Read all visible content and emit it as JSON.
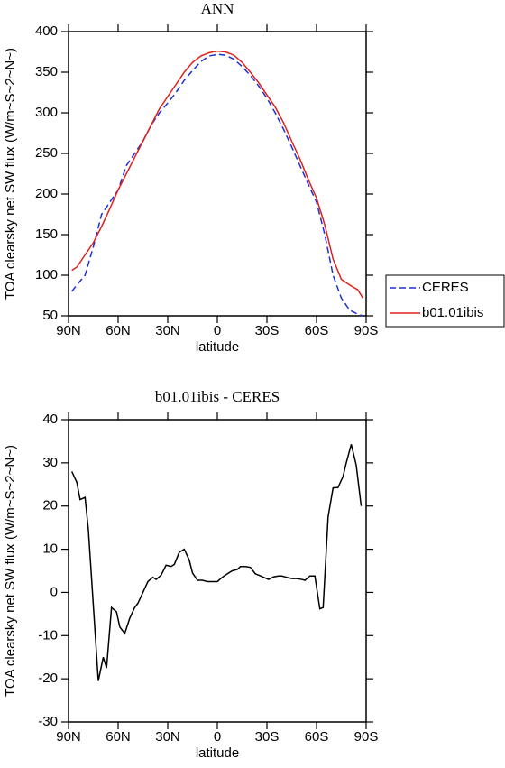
{
  "chart_data": [
    {
      "type": "line",
      "title": "ANN",
      "xlabel": "latitude",
      "ylabel": "TOA clearsky net SW flux (W/m~S~2~N~)",
      "x": [
        88,
        85,
        80,
        75,
        70,
        65,
        60,
        55,
        50,
        45,
        40,
        35,
        30,
        25,
        20,
        15,
        10,
        5,
        0,
        -5,
        -10,
        -15,
        -20,
        -25,
        -30,
        -35,
        -40,
        -45,
        -50,
        -55,
        -60,
        -65,
        -70,
        -75,
        -80,
        -85,
        -88
      ],
      "series": [
        {
          "name": "CERES",
          "color": "#1f2fd6",
          "style": "dashed",
          "values": [
            80,
            88,
            100,
            135,
            175,
            190,
            205,
            235,
            250,
            265,
            285,
            300,
            312,
            325,
            340,
            352,
            363,
            370,
            372,
            371,
            366,
            357,
            346,
            333,
            318,
            300,
            280,
            258,
            235,
            212,
            190,
            150,
            100,
            72,
            57,
            52,
            50
          ]
        },
        {
          "name": "b01.01ibis",
          "color": "#e0201b",
          "style": "solid",
          "values": [
            106,
            110,
            125,
            140,
            160,
            182,
            205,
            225,
            245,
            265,
            285,
            305,
            320,
            335,
            350,
            362,
            370,
            374,
            376,
            375,
            371,
            362,
            350,
            337,
            322,
            307,
            288,
            265,
            243,
            218,
            195,
            162,
            120,
            95,
            88,
            82,
            72
          ]
        }
      ],
      "xlim": [
        90,
        -90
      ],
      "xticks": [
        {
          "value": 90,
          "label": "90N"
        },
        {
          "value": 60,
          "label": "60N"
        },
        {
          "value": 30,
          "label": "30N"
        },
        0,
        {
          "value": -30,
          "label": "30S"
        },
        {
          "value": -60,
          "label": "60S"
        },
        {
          "value": -90,
          "label": "90S"
        }
      ],
      "ylim": [
        50,
        400
      ],
      "yticks": [
        50,
        100,
        150,
        200,
        250,
        300,
        350,
        400
      ],
      "legend": "outside right"
    },
    {
      "type": "line",
      "title": "b01.01ibis - CERES",
      "xlabel": "latitude",
      "ylabel": "TOA clearsky net SW flux (W/m~S~2~N~)",
      "x": [
        88,
        85,
        83,
        80,
        78,
        75,
        72,
        69,
        67,
        64,
        61,
        59,
        56,
        53,
        50,
        48,
        45,
        42,
        39,
        37,
        34,
        31,
        28,
        26,
        23,
        20,
        17,
        15,
        12,
        9,
        6,
        3,
        0,
        -3,
        -6,
        -9,
        -12,
        -14,
        -17,
        -20,
        -23,
        -25,
        -28,
        -31,
        -34,
        -37,
        -39,
        -42,
        -45,
        -48,
        -51,
        -53,
        -56,
        -59,
        -62,
        -64,
        -67,
        -70,
        -73,
        -76,
        -78,
        -81,
        -84,
        -87
      ],
      "series": [
        {
          "color": "#000000",
          "style": "solid",
          "values": [
            28,
            25.5,
            21.5,
            22,
            14.5,
            -3,
            -20.5,
            -15,
            -17.5,
            -3.5,
            -4.5,
            -8,
            -9.5,
            -6,
            -3.5,
            -2.5,
            0,
            2.5,
            3.5,
            3,
            4,
            6.3,
            6,
            6.5,
            9.3,
            10,
            7.5,
            4.5,
            2.8,
            2.8,
            2.5,
            2.5,
            2.5,
            3.5,
            4.3,
            5,
            5.3,
            6,
            6,
            5.8,
            4.3,
            4,
            3.5,
            3,
            3.6,
            3.8,
            3.8,
            3.5,
            3.2,
            3.2,
            3,
            2.8,
            3.8,
            3.8,
            -3.8,
            -3.5,
            17.5,
            24.2,
            24.3,
            26.8,
            30,
            34.3,
            29.5,
            20
          ]
        }
      ],
      "xlim": [
        90,
        -90
      ],
      "xticks": [
        {
          "value": 90,
          "label": "90N"
        },
        {
          "value": 60,
          "label": "60N"
        },
        {
          "value": 30,
          "label": "30N"
        },
        0,
        {
          "value": -30,
          "label": "30S"
        },
        {
          "value": -60,
          "label": "60S"
        },
        {
          "value": -90,
          "label": "90S"
        }
      ],
      "ylim": [
        -30,
        40
      ],
      "yticks": [
        -30,
        -20,
        -10,
        0,
        10,
        20,
        30,
        40
      ]
    }
  ]
}
